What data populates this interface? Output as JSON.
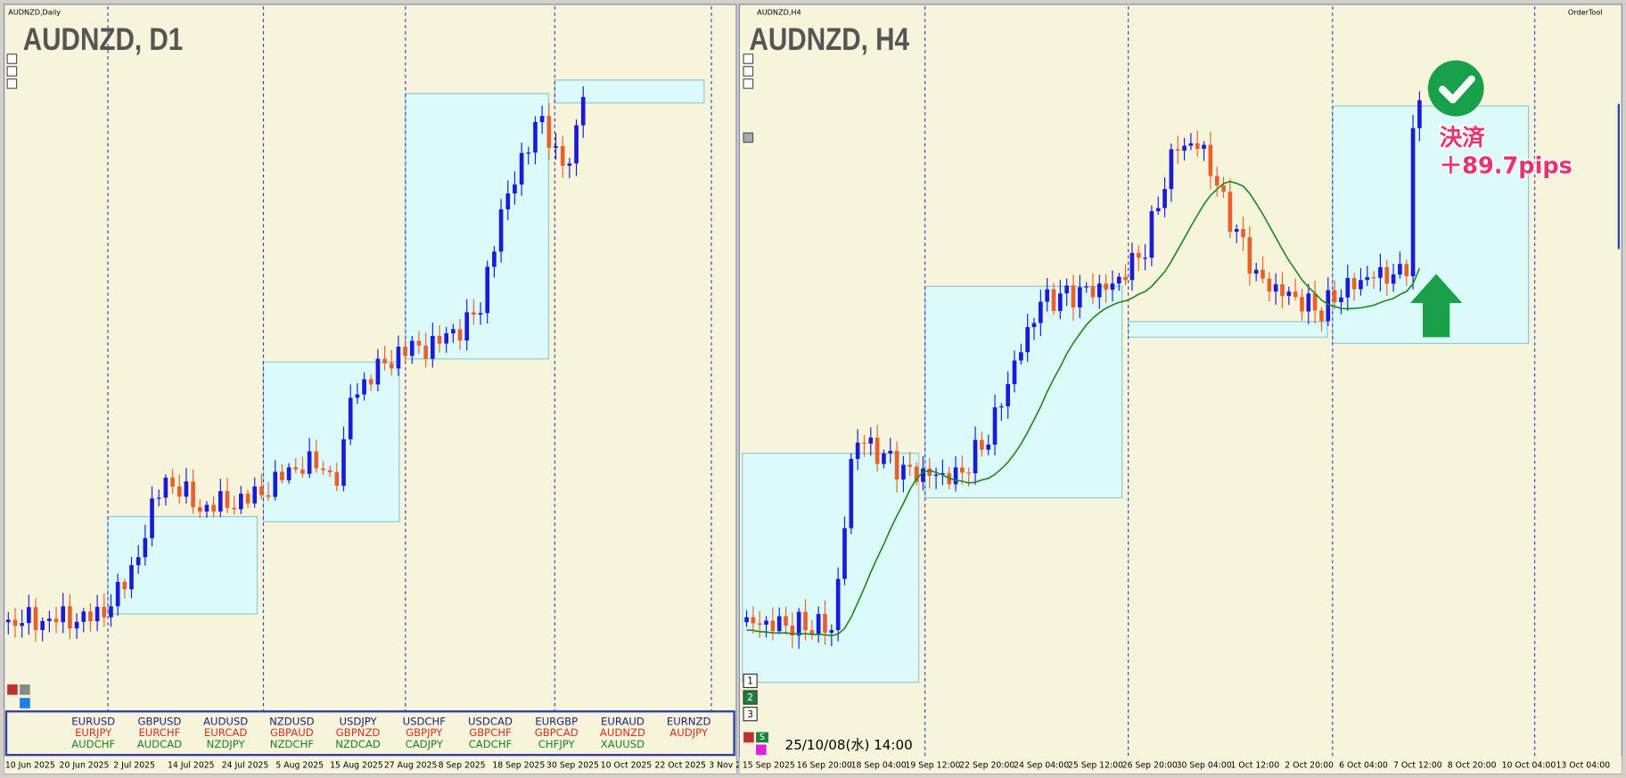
{
  "left": {
    "window_title": "AUDNZD,Daily",
    "chart_label": "AUDNZD, D1",
    "dates": [
      "10 Jun 2025",
      "20 Jun 2025",
      "2 Jul 2025",
      "14 Jul 2025",
      "24 Jul 2025",
      "5 Aug 2025",
      "15 Aug 2025",
      "27 Aug 2025",
      "8 Sep 2025",
      "18 Sep 2025",
      "30 Sep 2025",
      "10 Oct 2025",
      "22 Oct 2025",
      "3 Nov 2"
    ],
    "symbols": [
      [
        "EURUSD",
        "GBPUSD",
        "AUDUSD",
        "NZDUSD",
        "USDJPY",
        "USDCHF",
        "USDCAD",
        "EURGBP",
        "EURAUD",
        "EURNZD"
      ],
      [
        "EURJPY",
        "EURCHF",
        "EURCAD",
        "GBPAUD",
        "GBPNZD",
        "GBPJPY",
        "GBPCHF",
        "GBPCAD",
        "AUDNZD",
        "AUDJPY"
      ],
      [
        "AUDCHF",
        "AUDCAD",
        "NZDJPY",
        "NZDCHF",
        "NZDCAD",
        "CADJPY",
        "CADCHF",
        "CHFJPY",
        "XAUUSD"
      ]
    ]
  },
  "right": {
    "window_title": "AUDNZD,H4",
    "chart_label": "AUDNZD, H4",
    "tool": "OrderTool",
    "annotation": {
      "line1": "決済",
      "line2": "＋89.7pips"
    },
    "timestamp": "25/10/08(水) 14:00",
    "buttons": [
      "1",
      "2",
      "3"
    ],
    "s_button": "S",
    "dates": [
      "15 Sep 2025",
      "16 Sep 20:00",
      "18 Sep 04:00",
      "19 Sep 12:00",
      "22 Sep 20:00",
      "24 Sep 04:00",
      "25 Sep 12:00",
      "26 Sep 20:00",
      "30 Sep 04:00",
      "1 Oct 12:00",
      "2 Oct 20:00",
      "6 Oct 04:00",
      "7 Oct 12:00",
      "8 Oct 20:00",
      "10 Oct 04:00",
      "13 Oct 04:00"
    ]
  }
}
